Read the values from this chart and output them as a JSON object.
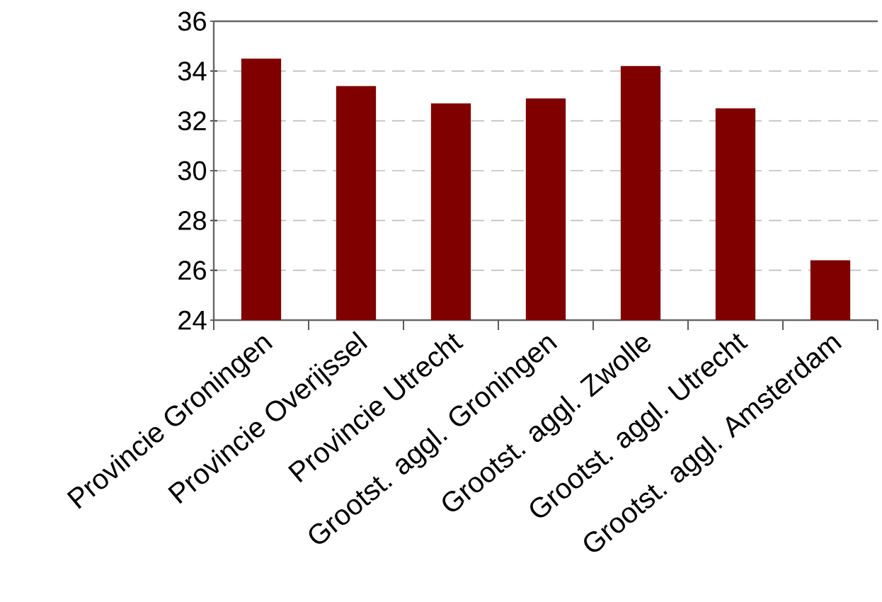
{
  "chart_data": {
    "type": "bar",
    "categories": [
      "Provincie Groningen",
      "Provincie Overijssel",
      "Provincie Utrecht",
      "Grootst. aggl. Groningen",
      "Grootst. aggl. Zwolle",
      "Grootst. aggl. Utrecht",
      "Grootst. aggl. Amsterdam"
    ],
    "values": [
      34.5,
      33.4,
      32.7,
      32.9,
      34.2,
      32.5,
      26.4
    ],
    "color": "#800000",
    "ylim": [
      24,
      36
    ],
    "yticks": [
      24,
      26,
      28,
      30,
      32,
      34,
      36
    ],
    "grid": "y"
  }
}
